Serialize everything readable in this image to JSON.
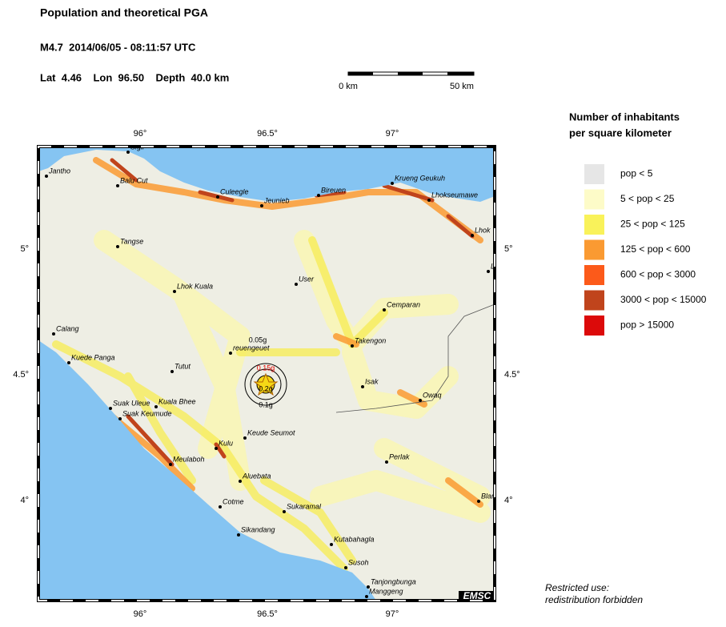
{
  "header": {
    "title": "Population and theoretical PGA",
    "event": "M4.7  2014/06/05 - 08:11:57 UTC",
    "location": "Lat  4.46    Lon  96.50    Depth  40.0 km"
  },
  "scale_bar": {
    "start": "0 km",
    "end": "50 km"
  },
  "axes": {
    "lon_ticks": [
      "96°",
      "96.5°",
      "97°"
    ],
    "lat_ticks": [
      "5°",
      "4.5°",
      "4°"
    ]
  },
  "legend": {
    "title": [
      "Number of inhabitants",
      "per square kilometer"
    ],
    "items": [
      {
        "label": "pop < 5",
        "color": "#e6e6e6"
      },
      {
        "label": "5 < pop < 25",
        "color": "#fdfbc8"
      },
      {
        "label": "25 < pop < 125",
        "color": "#f9f25a"
      },
      {
        "label": "125 < pop < 600",
        "color": "#fa9a32"
      },
      {
        "label": "600 < pop < 3000",
        "color": "#fc5a1a"
      },
      {
        "label": "3000 < pop < 15000",
        "color": "#c0441c"
      },
      {
        "label": "pop > 15000",
        "color": "#dc0a0a"
      }
    ]
  },
  "cities": [
    "Sigli",
    "Jantho",
    "Balu Cut",
    "Culeegle",
    "Jeunieb",
    "Bireuen",
    "Krueng Geukuh",
    "Lhokseumawe",
    "Lhok",
    "L",
    "Tangse",
    "Lhok Kuala",
    "User",
    "Cemparan",
    "Calang",
    "Takengon",
    "Kuede Panga",
    "reuengeuet",
    "Tutut",
    "Isak",
    "Owaq",
    "Suak Uleue",
    "Kuala Bhee",
    "Suak Keumude",
    "Keude Seumot",
    "Kulu",
    "Meulaboh",
    "Perlak",
    "Aluebata",
    "Blan",
    "Cotme",
    "Sukaramal",
    "Sikandang",
    "Kutabahagla",
    "Susoh",
    "Tanjongbunga",
    "Manggeng"
  ],
  "pga_labels": [
    "0.05g",
    "0.15g",
    "0.2g",
    "0.1g"
  ],
  "credit": "EMSC",
  "notice": [
    "Restricted use:",
    "redistribution forbidden"
  ]
}
